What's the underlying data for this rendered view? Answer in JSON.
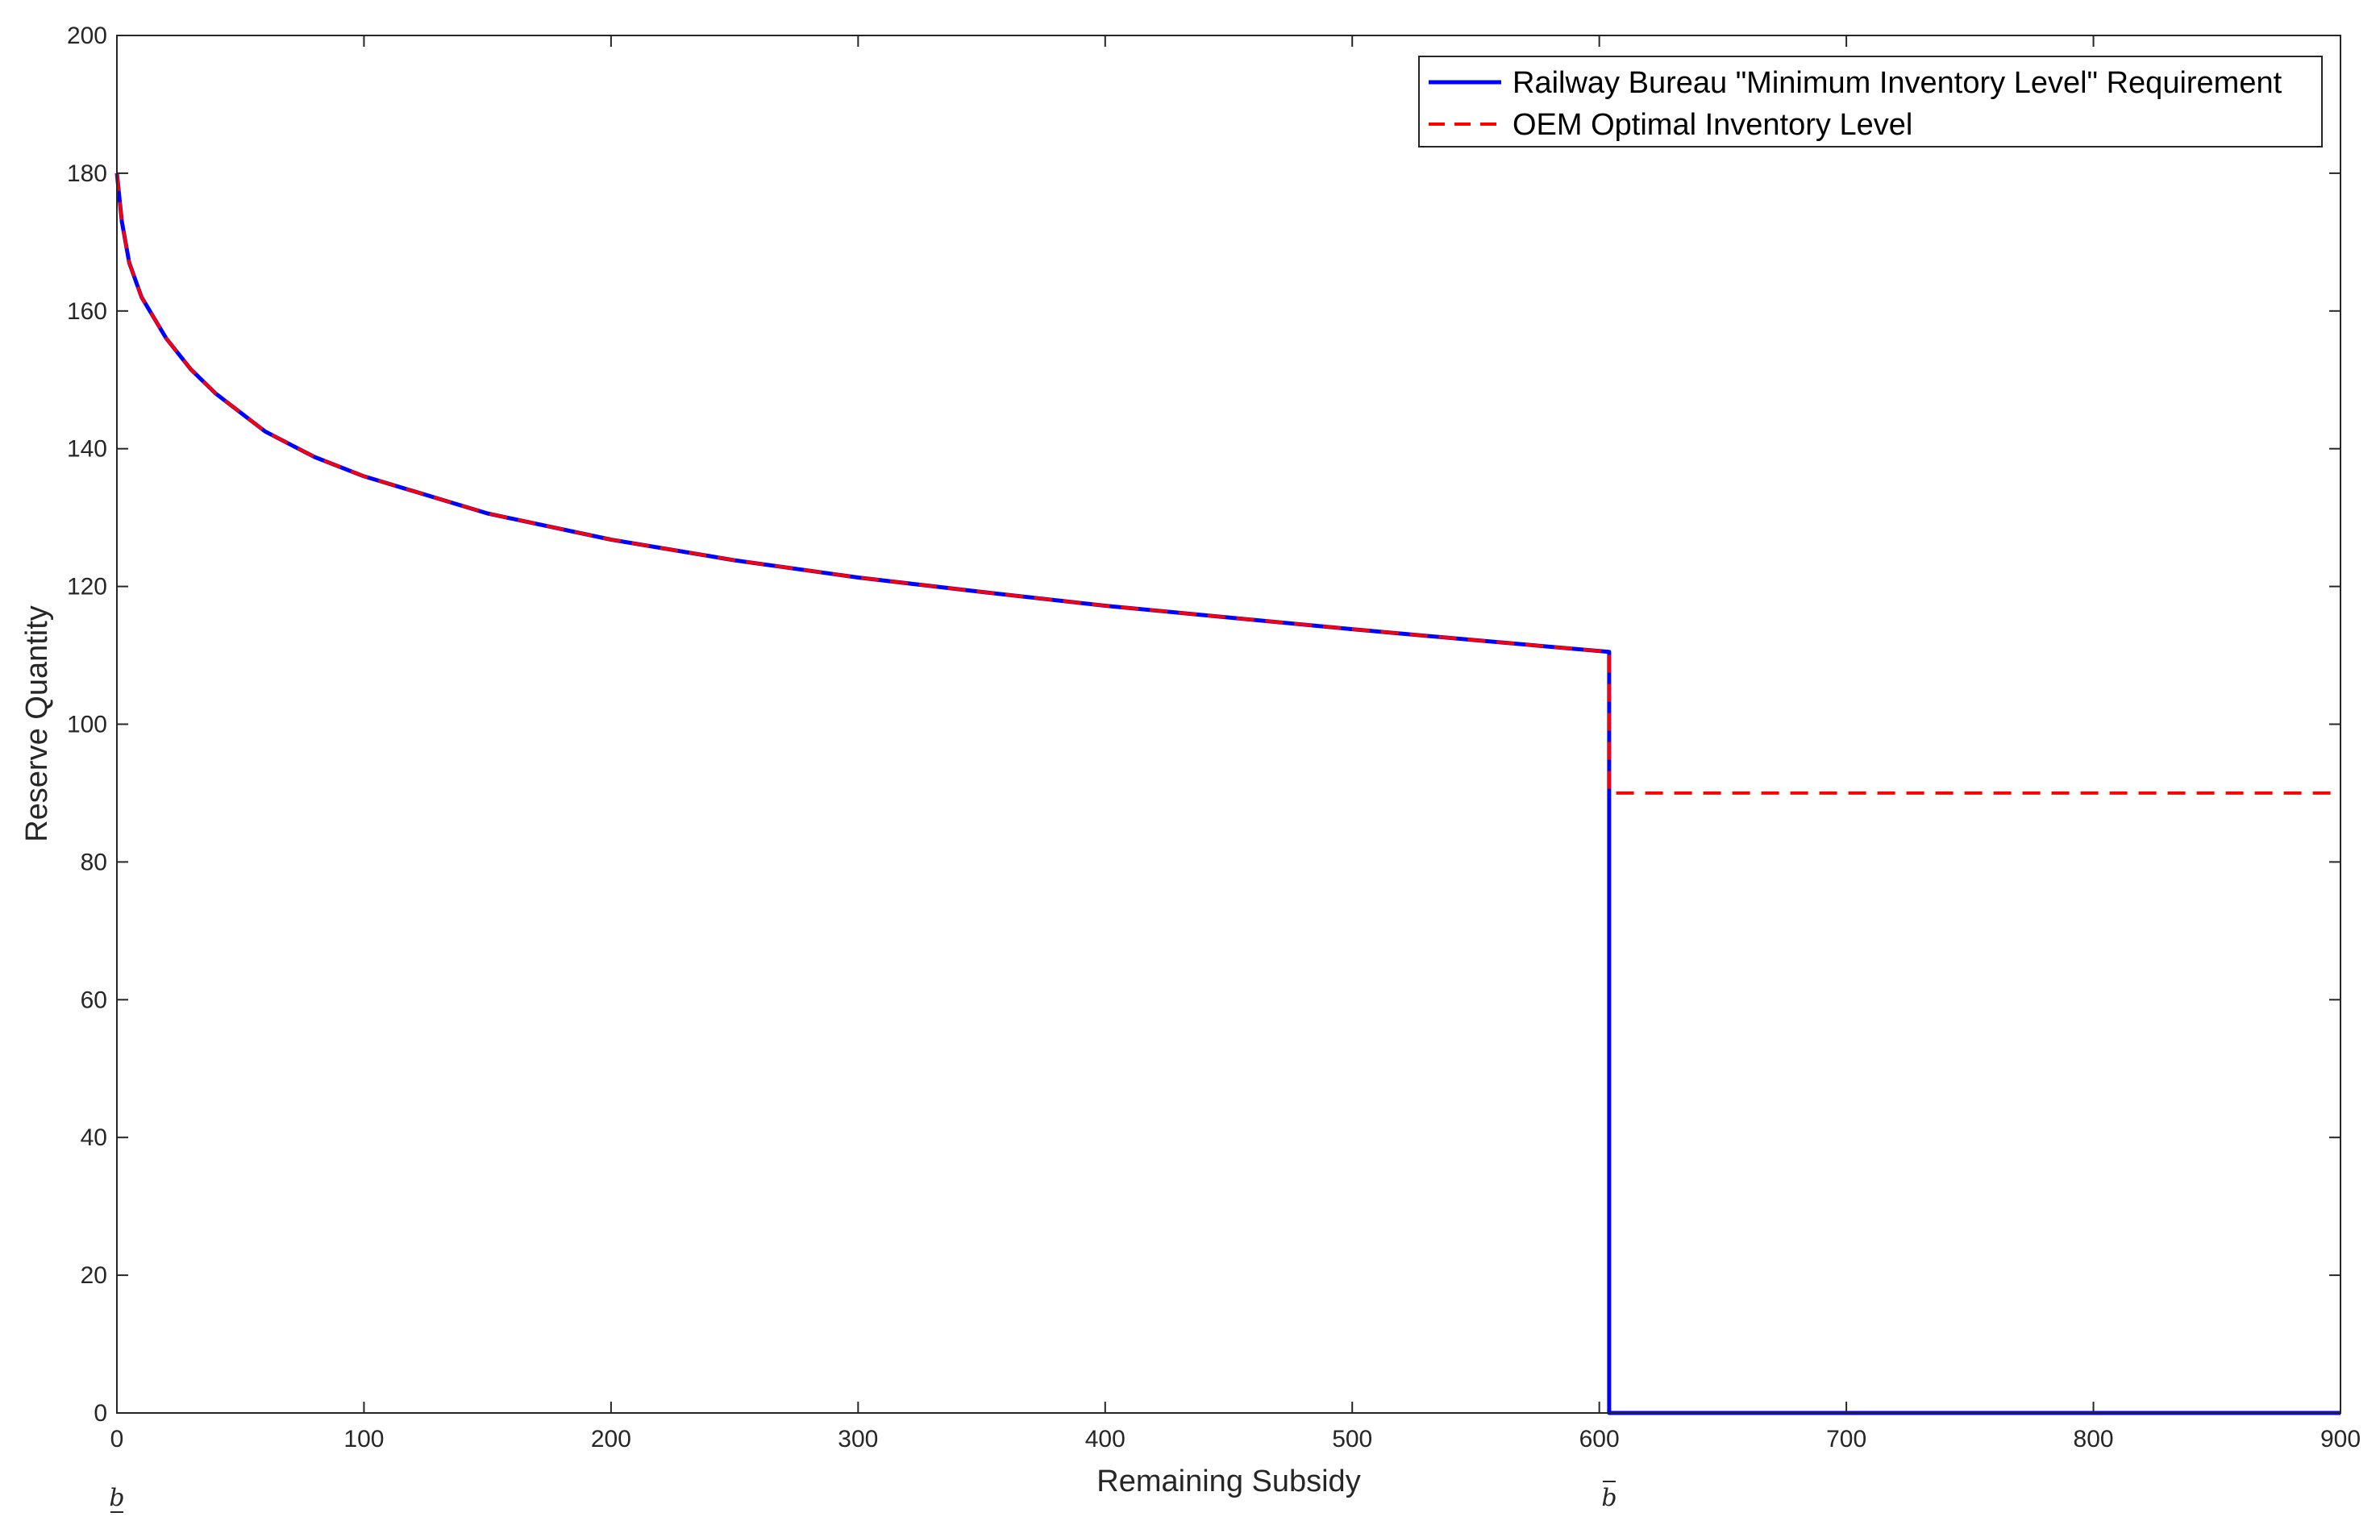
{
  "chart_data": {
    "type": "line",
    "title": "",
    "xlabel": "Remaining Subsidy",
    "ylabel": "Reserve Quantity",
    "xlim": [
      0,
      900
    ],
    "ylim": [
      0,
      200
    ],
    "xticks": [
      0,
      100,
      200,
      300,
      400,
      500,
      600,
      700,
      800,
      900
    ],
    "yticks": [
      0,
      20,
      40,
      60,
      80,
      100,
      120,
      140,
      160,
      180,
      200
    ],
    "grid": false,
    "legend_position": "top-right",
    "special_x_labels": [
      {
        "x": 0,
        "text": "b",
        "mark": "underbar"
      },
      {
        "x": 604,
        "text": "b",
        "mark": "overbar"
      }
    ],
    "series": [
      {
        "name": "Railway Bureau \"Minimum Inventory Level\" Requirement",
        "color": "#0000ff",
        "style": "solid",
        "x": [
          0,
          2,
          5,
          10,
          20,
          30,
          40,
          60,
          80,
          100,
          150,
          200,
          250,
          300,
          350,
          400,
          450,
          500,
          550,
          604,
          604,
          900
        ],
        "y": [
          180,
          173,
          167,
          162,
          156,
          151.5,
          148,
          142.5,
          138.8,
          136,
          130.6,
          126.8,
          123.8,
          121.3,
          119.2,
          117.2,
          115.5,
          113.8,
          112.2,
          110.5,
          0,
          0
        ]
      },
      {
        "name": "OEM Optimal Inventory Level",
        "color": "#ff0000",
        "style": "dashed",
        "x": [
          0,
          2,
          5,
          10,
          20,
          30,
          40,
          60,
          80,
          100,
          150,
          200,
          250,
          300,
          350,
          400,
          450,
          500,
          550,
          604,
          604,
          900
        ],
        "y": [
          180,
          173,
          167,
          162,
          156,
          151.5,
          148,
          142.5,
          138.8,
          136,
          130.6,
          126.8,
          123.8,
          121.3,
          119.2,
          117.2,
          115.5,
          113.8,
          112.2,
          110.5,
          90,
          90
        ]
      }
    ]
  }
}
